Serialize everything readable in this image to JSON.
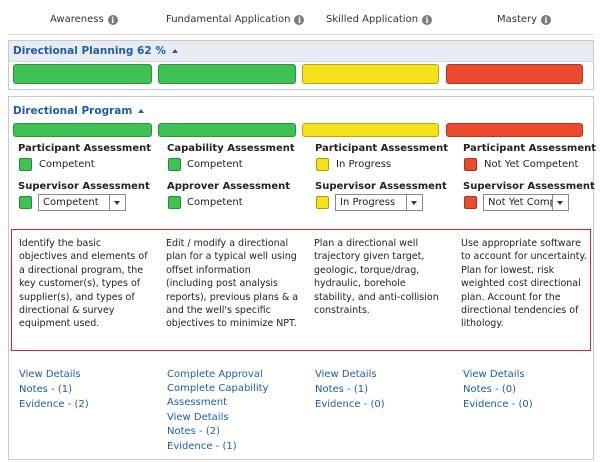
{
  "colors": {
    "green": "#3fc253",
    "yellow": "#f4e11a",
    "red": "#eb4a2e",
    "link": "#1f5da8",
    "highlight_border": "#d9262c"
  },
  "levels": [
    {
      "label": "Awareness",
      "icon": "info-icon"
    },
    {
      "label": "Fundamental Application",
      "icon": "info-icon"
    },
    {
      "label": "Skilled Application",
      "icon": "info-icon"
    },
    {
      "label": "Mastery",
      "icon": "info-icon"
    }
  ],
  "planning": {
    "title": "Directional Planning 62 %",
    "toggle_icon": "caret-up-icon",
    "bar_colors": [
      "green",
      "green",
      "yellow",
      "red"
    ]
  },
  "program": {
    "title": "Directional Program",
    "toggle_icon": "caret-up-icon",
    "bar_colors": [
      "green",
      "green",
      "yellow",
      "red"
    ],
    "columns": [
      {
        "assess1_label": "Participant Assessment",
        "assess1_status": "Competent",
        "assess1_color": "green",
        "assess2_label": "Supervisor Assessment",
        "assess2_status": "Competent",
        "assess2_color": "green",
        "assess2_type": "select",
        "description": "Identify the basic objectives and elements of a directional program, the key customer(s), types of supplier(s), and types of directional & survey equipment used.",
        "links": [
          "View Details",
          "Notes - (1)",
          "Evidence - (2)"
        ]
      },
      {
        "assess1_label": "Capability Assessment",
        "assess1_status": "Competent",
        "assess1_color": "green",
        "assess2_label": "Approver Assessment",
        "assess2_status": "Competent",
        "assess2_color": "green",
        "assess2_type": "text",
        "description": "Edit / modify a directional plan for a typical well using offset information (including post analysis reports), previous plans & a and the well's specific objectives to minimize NPT.",
        "links": [
          "Complete Approval",
          "Complete Capability",
          "Assessment",
          "View Details",
          "Notes - (2)",
          "Evidence - (1)"
        ]
      },
      {
        "assess1_label": "Participant Assessment",
        "assess1_status": "In Progress",
        "assess1_color": "yellow",
        "assess2_label": "Supervisor Assessment",
        "assess2_status": "In Progress",
        "assess2_color": "yellow",
        "assess2_type": "select",
        "description": "Plan a directional well trajectory given target, geologic, torque/drag, hydraulic, borehole stability, and anti-collision constraints.",
        "links": [
          "View Details",
          "Notes - (1)",
          "Evidence - (0)"
        ]
      },
      {
        "assess1_label": "Participant Assessment",
        "assess1_status": "Not Yet Competent",
        "assess1_color": "red",
        "assess2_label": "Supervisor Assessment",
        "assess2_status": "Not Yet Comp",
        "assess2_color": "red",
        "assess2_type": "select",
        "description": "Use appropriate software to account for uncertainty. Plan for lowest, risk weighted cost directional plan. Account for the directional tendencies of lithology.",
        "links": [
          "View Details",
          "Notes - (0)",
          "Evidence - (0)"
        ]
      }
    ]
  }
}
